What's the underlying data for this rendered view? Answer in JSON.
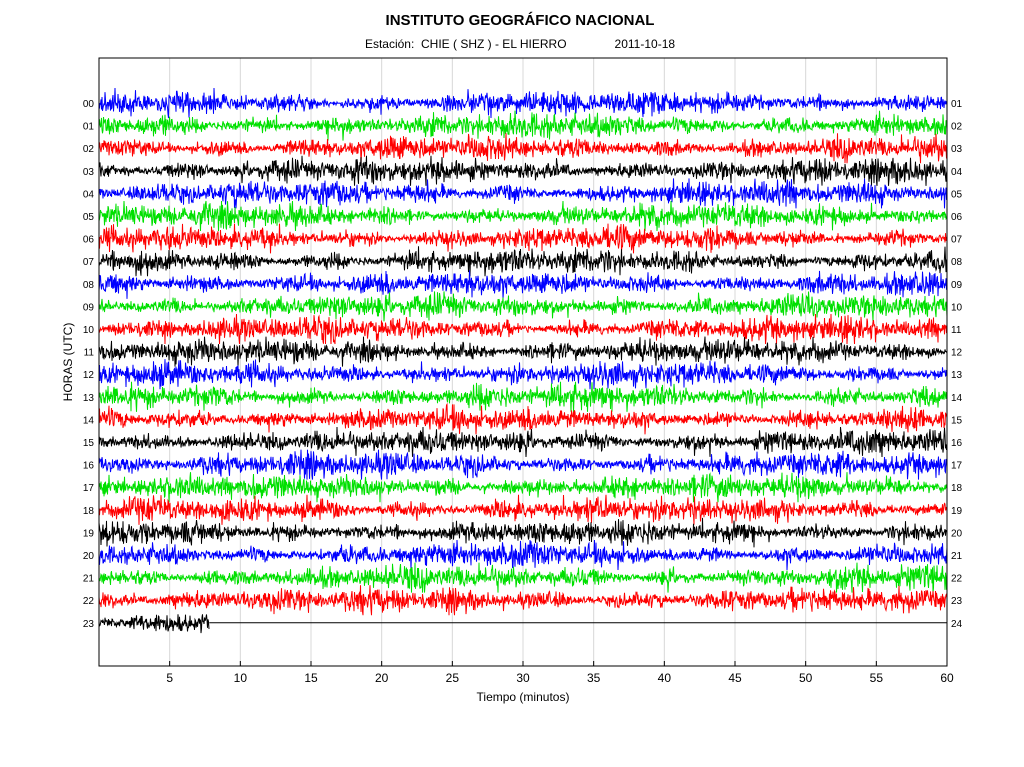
{
  "header": {
    "title": "INSTITUTO GEOGRÁFICO NACIONAL",
    "station": "Estación:  CHIE ( SHZ ) - EL HIERRO",
    "date": "2011-10-18"
  },
  "chart_data": {
    "type": "line",
    "title": "INSTITUTO GEOGRÁFICO NACIONAL",
    "xlabel": "Tiempo (minutos)",
    "ylabel": "HORAS (UTC)",
    "xlim": [
      0,
      60
    ],
    "x_ticks": [
      5,
      10,
      15,
      20,
      25,
      30,
      35,
      40,
      45,
      50,
      55,
      60
    ],
    "left_hour_labels": [
      "00",
      "01",
      "02",
      "03",
      "04",
      "05",
      "06",
      "07",
      "08",
      "09",
      "10",
      "11",
      "12",
      "13",
      "14",
      "15",
      "16",
      "17",
      "18",
      "19",
      "20",
      "21",
      "22",
      "23"
    ],
    "right_hour_labels": [
      "01",
      "02",
      "03",
      "04",
      "05",
      "06",
      "07",
      "08",
      "09",
      "10",
      "11",
      "12",
      "13",
      "14",
      "15",
      "16",
      "17",
      "18",
      "19",
      "20",
      "21",
      "22",
      "23",
      "24"
    ],
    "trace_colors": [
      "#0000ff",
      "#00e000",
      "#ff0000",
      "#000000"
    ],
    "series": [
      {
        "hour": "00",
        "start_min": 0,
        "end_min": 60
      },
      {
        "hour": "01",
        "start_min": 0,
        "end_min": 60
      },
      {
        "hour": "02",
        "start_min": 0,
        "end_min": 60
      },
      {
        "hour": "03",
        "start_min": 0,
        "end_min": 60
      },
      {
        "hour": "04",
        "start_min": 0,
        "end_min": 60
      },
      {
        "hour": "05",
        "start_min": 0,
        "end_min": 60
      },
      {
        "hour": "06",
        "start_min": 0,
        "end_min": 60
      },
      {
        "hour": "07",
        "start_min": 0,
        "end_min": 60
      },
      {
        "hour": "08",
        "start_min": 0,
        "end_min": 60
      },
      {
        "hour": "09",
        "start_min": 0,
        "end_min": 60
      },
      {
        "hour": "10",
        "start_min": 0,
        "end_min": 60
      },
      {
        "hour": "11",
        "start_min": 0,
        "end_min": 60
      },
      {
        "hour": "12",
        "start_min": 0,
        "end_min": 60
      },
      {
        "hour": "13",
        "start_min": 0,
        "end_min": 60
      },
      {
        "hour": "14",
        "start_min": 0,
        "end_min": 60
      },
      {
        "hour": "15",
        "start_min": 0,
        "end_min": 60
      },
      {
        "hour": "16",
        "start_min": 0,
        "end_min": 60
      },
      {
        "hour": "17",
        "start_min": 0,
        "end_min": 60
      },
      {
        "hour": "18",
        "start_min": 0,
        "end_min": 60
      },
      {
        "hour": "19",
        "start_min": 0,
        "end_min": 60
      },
      {
        "hour": "20",
        "start_min": 0,
        "end_min": 60
      },
      {
        "hour": "21",
        "start_min": 0,
        "end_min": 60
      },
      {
        "hour": "22",
        "start_min": 0,
        "end_min": 60
      },
      {
        "hour": "23",
        "start_min": 0,
        "end_min": 7.8
      }
    ],
    "grid": true,
    "legend": "none"
  }
}
